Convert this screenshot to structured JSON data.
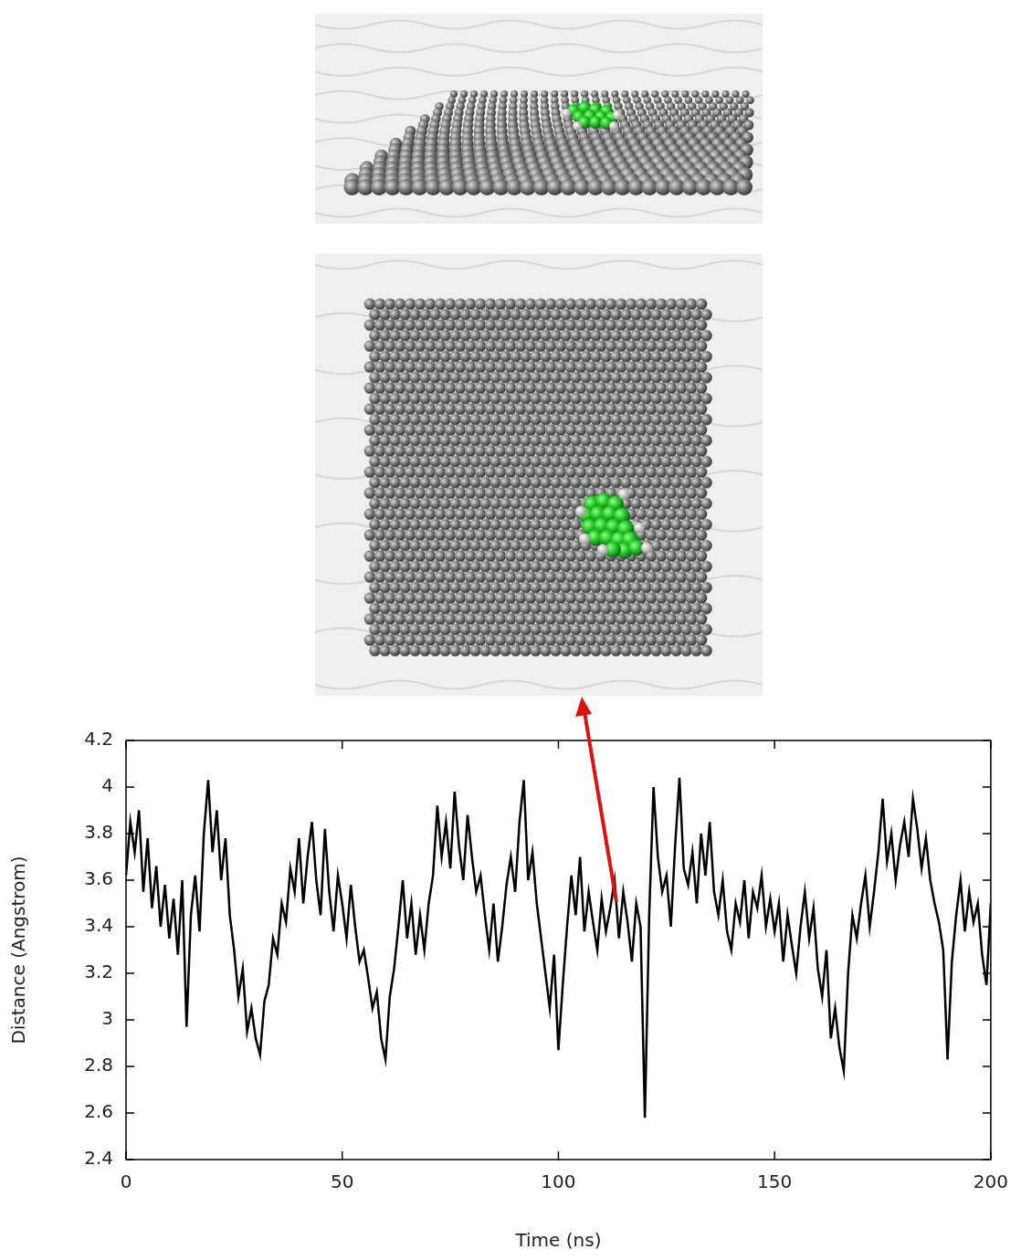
{
  "chart_data": {
    "type": "line",
    "x_label": "Time (ns)",
    "y_label": "Distance (Angstrom)",
    "color": "#000000",
    "grid": false,
    "xlim": [
      0,
      200
    ],
    "ylim": [
      2.4,
      4.2
    ],
    "xticks": [
      0,
      50,
      100,
      150,
      200
    ],
    "yticks": [
      2.4,
      2.6,
      2.8,
      3,
      3.2,
      3.4,
      3.6,
      3.8,
      4,
      4.2
    ],
    "x": [
      0,
      1,
      2,
      3,
      4,
      5,
      6,
      7,
      8,
      9,
      10,
      11,
      12,
      13,
      14,
      15,
      16,
      17,
      18,
      19,
      20,
      21,
      22,
      23,
      24,
      25,
      26,
      27,
      28,
      29,
      30,
      31,
      32,
      33,
      34,
      35,
      36,
      37,
      38,
      39,
      40,
      41,
      42,
      43,
      44,
      45,
      46,
      47,
      48,
      49,
      50,
      51,
      52,
      53,
      54,
      55,
      56,
      57,
      58,
      59,
      60,
      61,
      62,
      63,
      64,
      65,
      66,
      67,
      68,
      69,
      70,
      71,
      72,
      73,
      74,
      75,
      76,
      77,
      78,
      79,
      80,
      81,
      82,
      83,
      84,
      85,
      86,
      87,
      88,
      89,
      90,
      91,
      92,
      93,
      94,
      95,
      96,
      97,
      98,
      99,
      100,
      101,
      102,
      103,
      104,
      105,
      106,
      107,
      108,
      109,
      110,
      111,
      112,
      113,
      114,
      115,
      116,
      117,
      118,
      119,
      120,
      121,
      122,
      123,
      124,
      125,
      126,
      127,
      128,
      129,
      130,
      131,
      132,
      133,
      134,
      135,
      136,
      137,
      138,
      139,
      140,
      141,
      142,
      143,
      144,
      145,
      146,
      147,
      148,
      149,
      150,
      151,
      152,
      153,
      154,
      155,
      156,
      157,
      158,
      159,
      160,
      161,
      162,
      163,
      164,
      165,
      166,
      167,
      168,
      169,
      170,
      171,
      172,
      173,
      174,
      175,
      176,
      177,
      178,
      179,
      180,
      181,
      182,
      183,
      184,
      185,
      186,
      187,
      188,
      189,
      190,
      191,
      192,
      193,
      194,
      195,
      196,
      197,
      198,
      199,
      200
    ],
    "values": [
      3.62,
      3.85,
      3.72,
      3.9,
      3.55,
      3.78,
      3.48,
      3.66,
      3.4,
      3.58,
      3.35,
      3.52,
      3.28,
      3.6,
      2.97,
      3.45,
      3.62,
      3.38,
      3.8,
      4.03,
      3.72,
      3.9,
      3.6,
      3.78,
      3.45,
      3.3,
      3.1,
      3.22,
      2.95,
      3.05,
      2.92,
      2.85,
      3.08,
      3.15,
      3.35,
      3.28,
      3.5,
      3.42,
      3.65,
      3.55,
      3.78,
      3.5,
      3.7,
      3.85,
      3.6,
      3.45,
      3.82,
      3.55,
      3.38,
      3.62,
      3.5,
      3.35,
      3.58,
      3.4,
      3.25,
      3.3,
      3.18,
      3.05,
      3.12,
      2.92,
      2.83,
      3.1,
      3.22,
      3.4,
      3.6,
      3.35,
      3.5,
      3.28,
      3.45,
      3.3,
      3.5,
      3.62,
      3.92,
      3.7,
      3.85,
      3.65,
      3.98,
      3.75,
      3.6,
      3.88,
      3.7,
      3.55,
      3.62,
      3.45,
      3.3,
      3.5,
      3.25,
      3.4,
      3.58,
      3.7,
      3.55,
      3.85,
      4.03,
      3.6,
      3.72,
      3.5,
      3.35,
      3.2,
      3.05,
      3.28,
      2.87,
      3.15,
      3.4,
      3.62,
      3.45,
      3.7,
      3.38,
      3.55,
      3.42,
      3.3,
      3.52,
      3.38,
      3.48,
      3.6,
      3.35,
      3.55,
      3.42,
      3.25,
      3.5,
      3.4,
      2.58,
      3.45,
      4.0,
      3.7,
      3.55,
      3.62,
      3.4,
      3.75,
      4.04,
      3.65,
      3.58,
      3.72,
      3.5,
      3.8,
      3.62,
      3.85,
      3.55,
      3.45,
      3.6,
      3.38,
      3.3,
      3.5,
      3.42,
      3.6,
      3.35,
      3.55,
      3.48,
      3.62,
      3.4,
      3.52,
      3.38,
      3.5,
      3.25,
      3.45,
      3.32,
      3.2,
      3.4,
      3.55,
      3.35,
      3.48,
      3.22,
      3.1,
      3.3,
      2.92,
      3.05,
      2.88,
      2.78,
      3.2,
      3.45,
      3.35,
      3.5,
      3.62,
      3.4,
      3.55,
      3.72,
      3.95,
      3.68,
      3.8,
      3.6,
      3.75,
      3.85,
      3.7,
      3.95,
      3.82,
      3.65,
      3.78,
      3.6,
      3.5,
      3.42,
      3.3,
      2.83,
      3.25,
      3.45,
      3.6,
      3.38,
      3.55,
      3.42,
      3.5,
      3.28,
      3.15,
      3.5
    ]
  }
}
